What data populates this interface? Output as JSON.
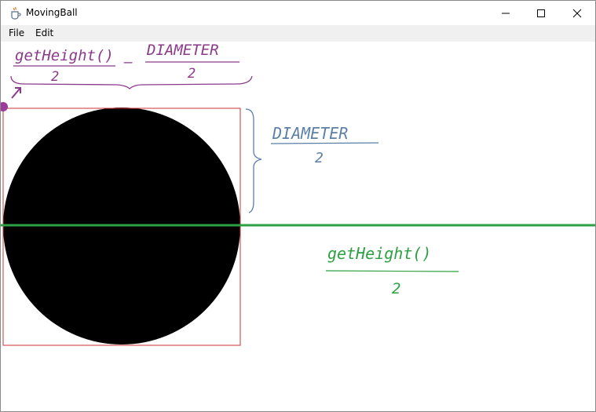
{
  "window": {
    "title": "MovingBall",
    "app_icon": "java-cup-icon"
  },
  "window_controls": {
    "minimize_icon": "minimize-icon",
    "maximize_icon": "maximize-icon",
    "close_icon": "close-icon"
  },
  "menu": {
    "file_label": "File",
    "edit_label": "Edit"
  },
  "annotations": {
    "top_left": {
      "numerator_left": "getHeight()",
      "denominator_left": "2",
      "operator": "–",
      "numerator_right": "DIAMETER",
      "denominator_right": "2",
      "color": "#8b3a8b"
    },
    "diameter_half": {
      "numerator": "DIAMETER",
      "denominator": "2",
      "color": "#5b7fa6"
    },
    "height_half": {
      "numerator": "getHeight()",
      "denominator": "2",
      "color": "#2ea043"
    }
  },
  "colors": {
    "ball": "#000000",
    "bounding_box": "#cc3333",
    "center_line": "#2ea043",
    "origin_dot": "#9b3b9b"
  }
}
